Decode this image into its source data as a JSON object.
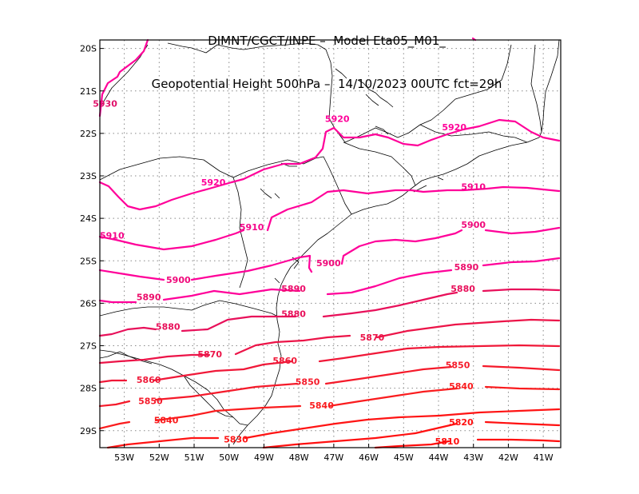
{
  "title": {
    "line1": "DIMNT/CGCT/INPE –  Model Eta05_M01_",
    "line2": "Geopotential Height 500hPa –  14/10/2023 00UTC fct=29h"
  },
  "map": {
    "lon_range": [
      -53.7,
      -40.5
    ],
    "lat_range": [
      -29.4,
      -19.8
    ],
    "lon_ticks": [
      {
        "value": -53,
        "label": "53W"
      },
      {
        "value": -52,
        "label": "52W"
      },
      {
        "value": -51,
        "label": "51W"
      },
      {
        "value": -50,
        "label": "50W"
      },
      {
        "value": -49,
        "label": "49W"
      },
      {
        "value": -48,
        "label": "48W"
      },
      {
        "value": -47,
        "label": "47W"
      },
      {
        "value": -46,
        "label": "46W"
      },
      {
        "value": -45,
        "label": "45W"
      },
      {
        "value": -44,
        "label": "44W"
      },
      {
        "value": -43,
        "label": "43W"
      },
      {
        "value": -42,
        "label": "42W"
      },
      {
        "value": -41,
        "label": "41W"
      }
    ],
    "lat_ticks": [
      {
        "value": -20,
        "label": "20S"
      },
      {
        "value": -21,
        "label": "21S"
      },
      {
        "value": -22,
        "label": "22S"
      },
      {
        "value": -23,
        "label": "23S"
      },
      {
        "value": -24,
        "label": "24S"
      },
      {
        "value": -25,
        "label": "25S"
      },
      {
        "value": -26,
        "label": "26S"
      },
      {
        "value": -27,
        "label": "27S"
      },
      {
        "value": -28,
        "label": "28S"
      },
      {
        "value": -29,
        "label": "29S"
      }
    ],
    "grid": "dotted",
    "contour_levels": [
      {
        "label": "5920",
        "color": "#ff0099"
      },
      {
        "label": "5910",
        "color": "#f5058a"
      },
      {
        "label": "5900",
        "color": "#f0087a"
      },
      {
        "label": "5890",
        "color": "#ec0c6a"
      },
      {
        "label": "5880",
        "color": "#e8105a"
      },
      {
        "label": "5870",
        "color": "#ec1448"
      },
      {
        "label": "5860",
        "color": "#f01838"
      },
      {
        "label": "5850",
        "color": "#f51a2a"
      },
      {
        "label": "5840",
        "color": "#fa1c1e"
      },
      {
        "label": "5830",
        "color": "#ff1414"
      },
      {
        "label": "5820",
        "color": "#ff1010"
      },
      {
        "label": "5810",
        "color": "#ff0c0c"
      }
    ],
    "contour_labels": [
      {
        "text": "5930",
        "lon": -53.55,
        "lat": -21.3
      },
      {
        "text": "5920",
        "lon": -46.9,
        "lat": -21.65
      },
      {
        "text": "5920",
        "lon": -43.55,
        "lat": -21.85
      },
      {
        "text": "5920",
        "lon": -50.45,
        "lat": -23.15
      },
      {
        "text": "5910",
        "lon": -43.0,
        "lat": -23.25
      },
      {
        "text": "5910",
        "lon": -53.35,
        "lat": -24.4
      },
      {
        "text": "5910",
        "lon": -49.35,
        "lat": -24.2
      },
      {
        "text": "5900",
        "lon": -43.0,
        "lat": -24.15
      },
      {
        "text": "5900",
        "lon": -47.15,
        "lat": -25.05
      },
      {
        "text": "5900",
        "lon": -51.45,
        "lat": -25.45
      },
      {
        "text": "5890",
        "lon": -43.2,
        "lat": -25.15
      },
      {
        "text": "5890",
        "lon": -48.15,
        "lat": -25.65
      },
      {
        "text": "5890",
        "lon": -52.3,
        "lat": -25.85
      },
      {
        "text": "5880",
        "lon": -43.3,
        "lat": -25.65
      },
      {
        "text": "5880",
        "lon": -48.15,
        "lat": -26.25
      },
      {
        "text": "5880",
        "lon": -51.75,
        "lat": -26.55
      },
      {
        "text": "5870",
        "lon": -45.9,
        "lat": -26.8
      },
      {
        "text": "5870",
        "lon": -50.55,
        "lat": -27.2
      },
      {
        "text": "5860",
        "lon": -48.4,
        "lat": -27.35
      },
      {
        "text": "5860",
        "lon": -52.3,
        "lat": -27.8
      },
      {
        "text": "5850",
        "lon": -43.45,
        "lat": -27.45
      },
      {
        "text": "5850",
        "lon": -47.75,
        "lat": -27.85
      },
      {
        "text": "5850",
        "lon": -52.25,
        "lat": -28.3
      },
      {
        "text": "5840",
        "lon": -43.35,
        "lat": -27.95
      },
      {
        "text": "5840",
        "lon": -47.35,
        "lat": -28.4
      },
      {
        "text": "5840",
        "lon": -51.8,
        "lat": -28.75
      },
      {
        "text": "5830",
        "lon": -49.8,
        "lat": -29.2
      },
      {
        "text": "5820",
        "lon": -43.35,
        "lat": -28.8
      },
      {
        "text": "5810",
        "lon": -43.75,
        "lat": -29.25
      }
    ]
  }
}
